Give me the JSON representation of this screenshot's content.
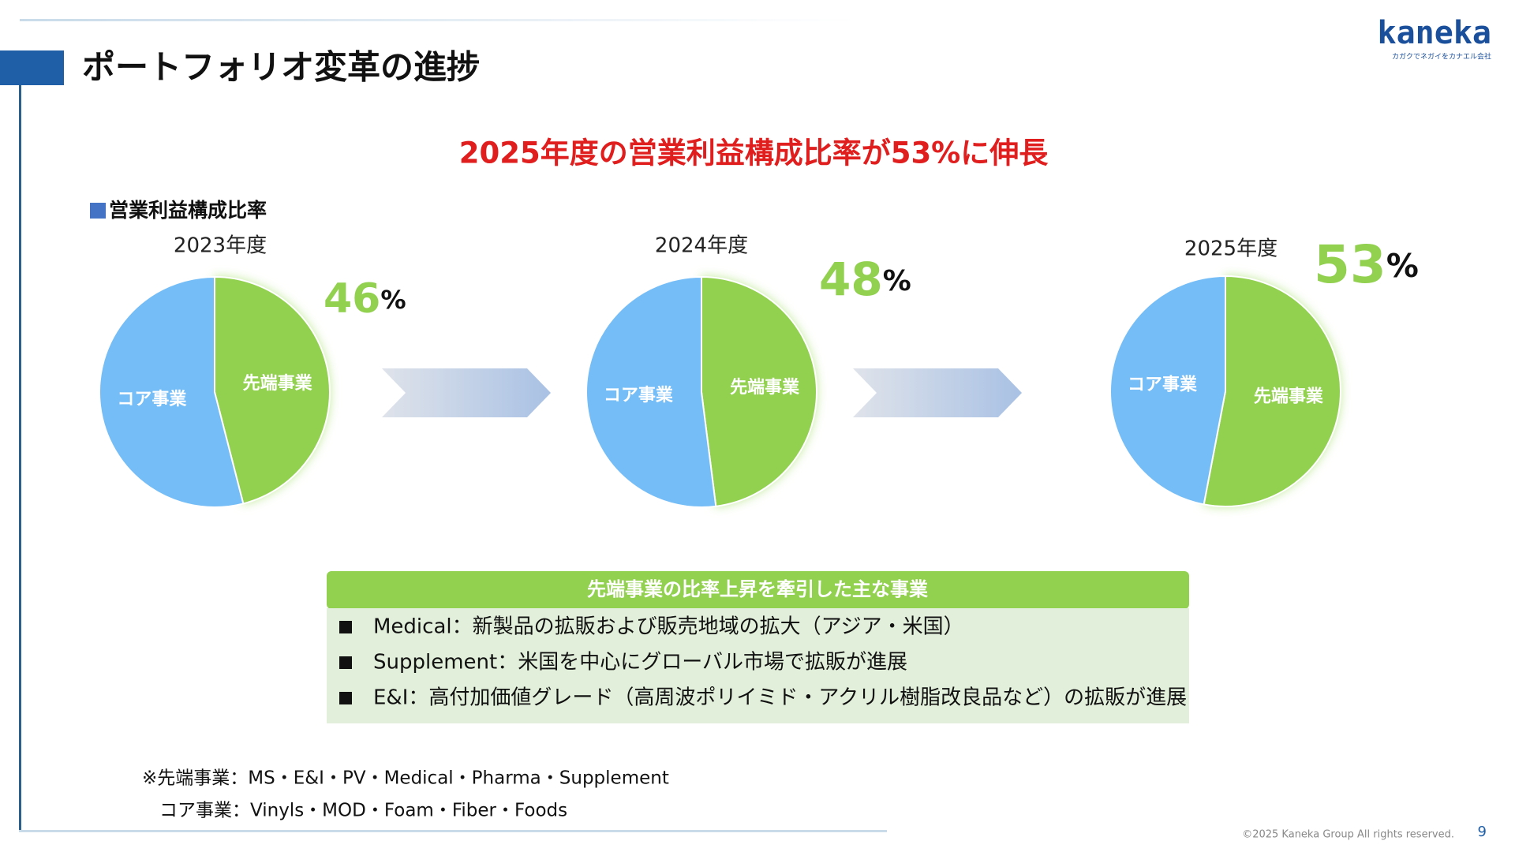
{
  "header": {
    "title": "ポートフォリオ変革の進捗",
    "logo": "kaneka",
    "logo_tagline": "カガクでネガイをカナエル会社"
  },
  "headline": "2025年度の営業利益構成比率が53%に伸長",
  "legend_label": "営業利益構成比率",
  "chart_data": [
    {
      "type": "pie",
      "title": "2023年度",
      "categories": [
        "先端事業",
        "コア事業"
      ],
      "values": [
        46,
        54
      ],
      "value_labels": [
        "46%",
        null
      ],
      "colors": [
        "#92d050",
        "#75bdf7"
      ]
    },
    {
      "type": "pie",
      "title": "2024年度",
      "categories": [
        "先端事業",
        "コア事業"
      ],
      "values": [
        48,
        52
      ],
      "value_labels": [
        "48%",
        null
      ],
      "colors": [
        "#92d050",
        "#75bdf7"
      ]
    },
    {
      "type": "pie",
      "title": "2025年度",
      "categories": [
        "先端事業",
        "コア事業"
      ],
      "values": [
        53,
        47
      ],
      "value_labels": [
        "53%",
        null
      ],
      "colors": [
        "#92d050",
        "#75bdf7"
      ]
    }
  ],
  "focus_box": {
    "title": "先端事業の比率上昇を牽引した主な事業",
    "items": [
      "Medical：新製品の拡販および販売地域の拡大（アジア・米国）",
      "Supplement：米国を中心にグローバル市場で拡販が進展",
      "E&I：高付加価値グレード（高周波ポリイミド・アクリル樹脂改良品など）の拡販が進展"
    ]
  },
  "notes": [
    "※先端事業：MS・E&I・PV・Medical・Pharma・Supplement",
    "コア事業：Vinyls・MOD・Foam・Fiber・Foods"
  ],
  "footer": {
    "copyright": "©2025 Kaneka Group All rights reserved.",
    "page": 9
  }
}
